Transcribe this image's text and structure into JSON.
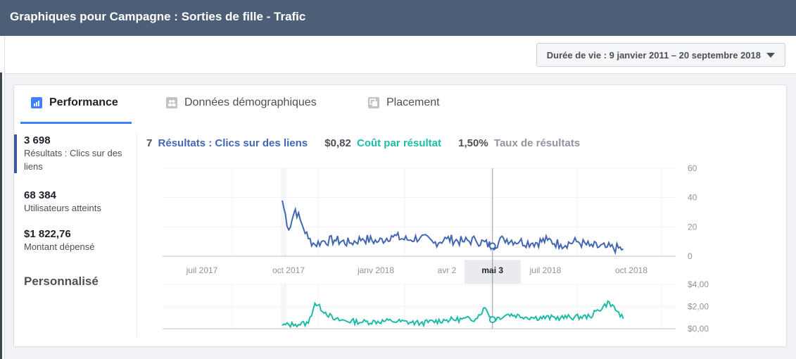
{
  "header": {
    "title": "Graphiques pour Campagne : Sorties de fille - Trafic"
  },
  "date_range": {
    "label": "Durée de vie : 9 janvier 2011 – 20 septembre 2018"
  },
  "tabs": [
    {
      "label": "Performance",
      "icon": "bar-chart-icon",
      "active": true
    },
    {
      "label": "Données démographiques",
      "icon": "people-icon",
      "active": false
    },
    {
      "label": "Placement",
      "icon": "placement-icon",
      "active": false
    }
  ],
  "metrics": [
    {
      "value": "3 698",
      "label": "Résultats : Clics sur des liens"
    },
    {
      "value": "68 384",
      "label": "Utilisateurs atteints"
    },
    {
      "value": "$1 822,76",
      "label": "Montant dépensé"
    }
  ],
  "custom_label": "Personnalisé",
  "stats": {
    "results_value": "7",
    "results_label": "Résultats : Clics sur des liens",
    "cost_value": "$0,82",
    "cost_label": "Coût par résultat",
    "rate_value": "1,50%",
    "rate_label": "Taux de résultats"
  },
  "colors": {
    "blue": "#4267b2",
    "green": "#1fbba6",
    "gray": "#90949c",
    "accent": "#4080ff"
  },
  "chart_data": {
    "type": "line",
    "x_ticks": [
      "juil 2017",
      "oct 2017",
      "janv 2018",
      "avr 2",
      "juil 2018",
      "oct 2018"
    ],
    "hover_label": "mai 3",
    "top": {
      "series": [
        {
          "name": "Résultats : Clics sur des liens",
          "color": "#4267b2"
        }
      ],
      "y_ticks": [
        "60",
        "40",
        "20",
        "0"
      ],
      "ylim": [
        0,
        60
      ],
      "x": [
        "2017-09-20",
        "2017-09-27",
        "2017-10-04",
        "2017-10-11",
        "2017-10-18",
        "2017-10-25",
        "2017-11-01",
        "2017-11-15",
        "2017-12-01",
        "2017-12-15",
        "2018-01-01",
        "2018-01-15",
        "2018-02-01",
        "2018-02-15",
        "2018-03-01",
        "2018-03-15",
        "2018-04-01",
        "2018-04-15",
        "2018-05-03",
        "2018-05-15",
        "2018-06-01",
        "2018-06-15",
        "2018-07-01",
        "2018-07-15",
        "2018-08-01",
        "2018-08-15",
        "2018-09-01",
        "2018-09-20"
      ],
      "values": [
        38,
        18,
        32,
        22,
        12,
        8,
        10,
        11,
        9,
        12,
        10,
        14,
        11,
        13,
        9,
        12,
        10,
        11,
        7,
        12,
        10,
        9,
        11,
        8,
        10,
        7,
        6,
        5
      ]
    },
    "bottom": {
      "series": [
        {
          "name": "Coût par résultat",
          "color": "#1fbba6"
        }
      ],
      "y_ticks": [
        "$4,00",
        "$2,00",
        "$0,00"
      ],
      "ylim": [
        0,
        4
      ],
      "x": [
        "2017-09-20",
        "2017-10-04",
        "2017-10-18",
        "2017-10-25",
        "2017-11-15",
        "2017-12-15",
        "2018-01-15",
        "2018-02-15",
        "2018-03-15",
        "2018-04-15",
        "2018-04-25",
        "2018-05-03",
        "2018-05-20",
        "2018-06-15",
        "2018-07-15",
        "2018-08-15",
        "2018-09-05",
        "2018-09-20"
      ],
      "values": [
        0.3,
        0.4,
        0.5,
        2.3,
        0.8,
        0.6,
        0.7,
        0.5,
        0.8,
        0.9,
        1.9,
        0.82,
        1.3,
        1.0,
        1.0,
        1.1,
        2.4,
        0.9
      ]
    }
  }
}
